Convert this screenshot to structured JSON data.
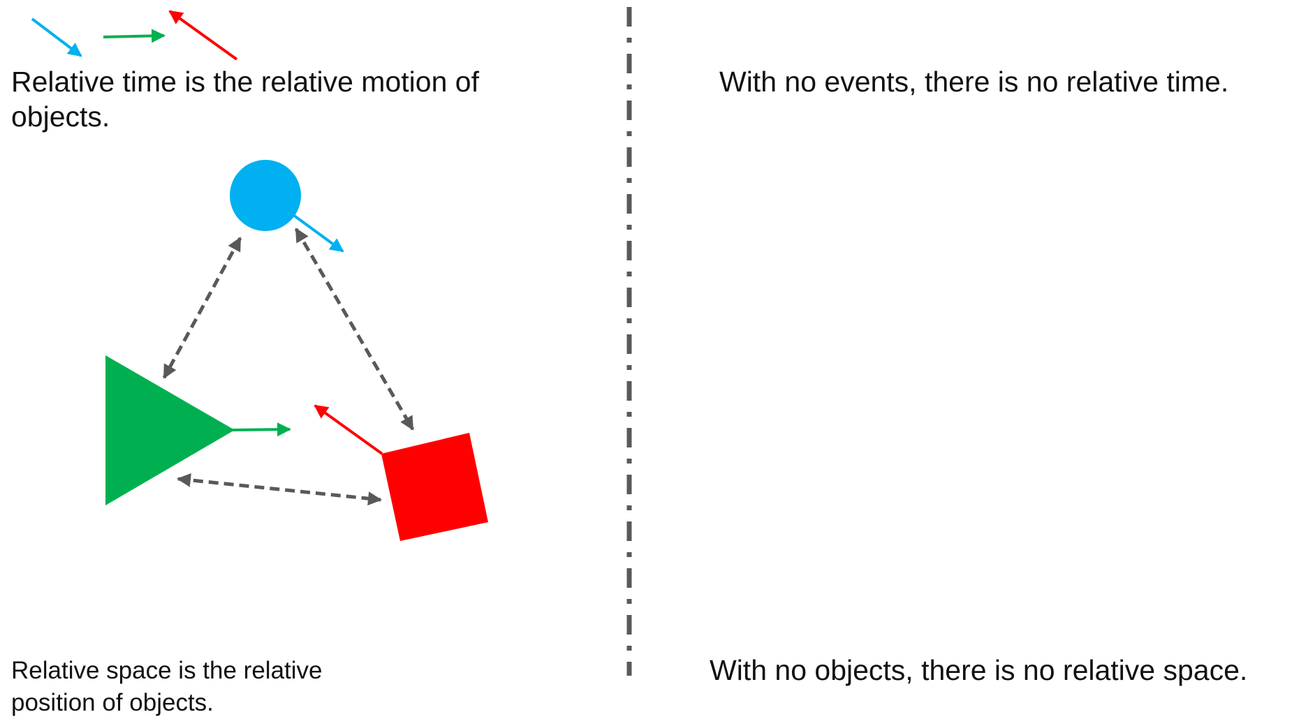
{
  "left_panel": {
    "time_caption": "Relative time is the relative motion of objects.",
    "space_caption": "Relative space is the relative position of objects."
  },
  "right_panel": {
    "no_events_caption": "With no events, there is no relative time.",
    "no_objects_caption": "With no objects, there is no relative space."
  },
  "colors": {
    "circle": "#00b0f0",
    "triangle": "#00b050",
    "square": "#ff0000",
    "dashed_arrows": "#595959",
    "divider": "#595959"
  },
  "shapes": [
    "circle",
    "triangle",
    "square"
  ]
}
